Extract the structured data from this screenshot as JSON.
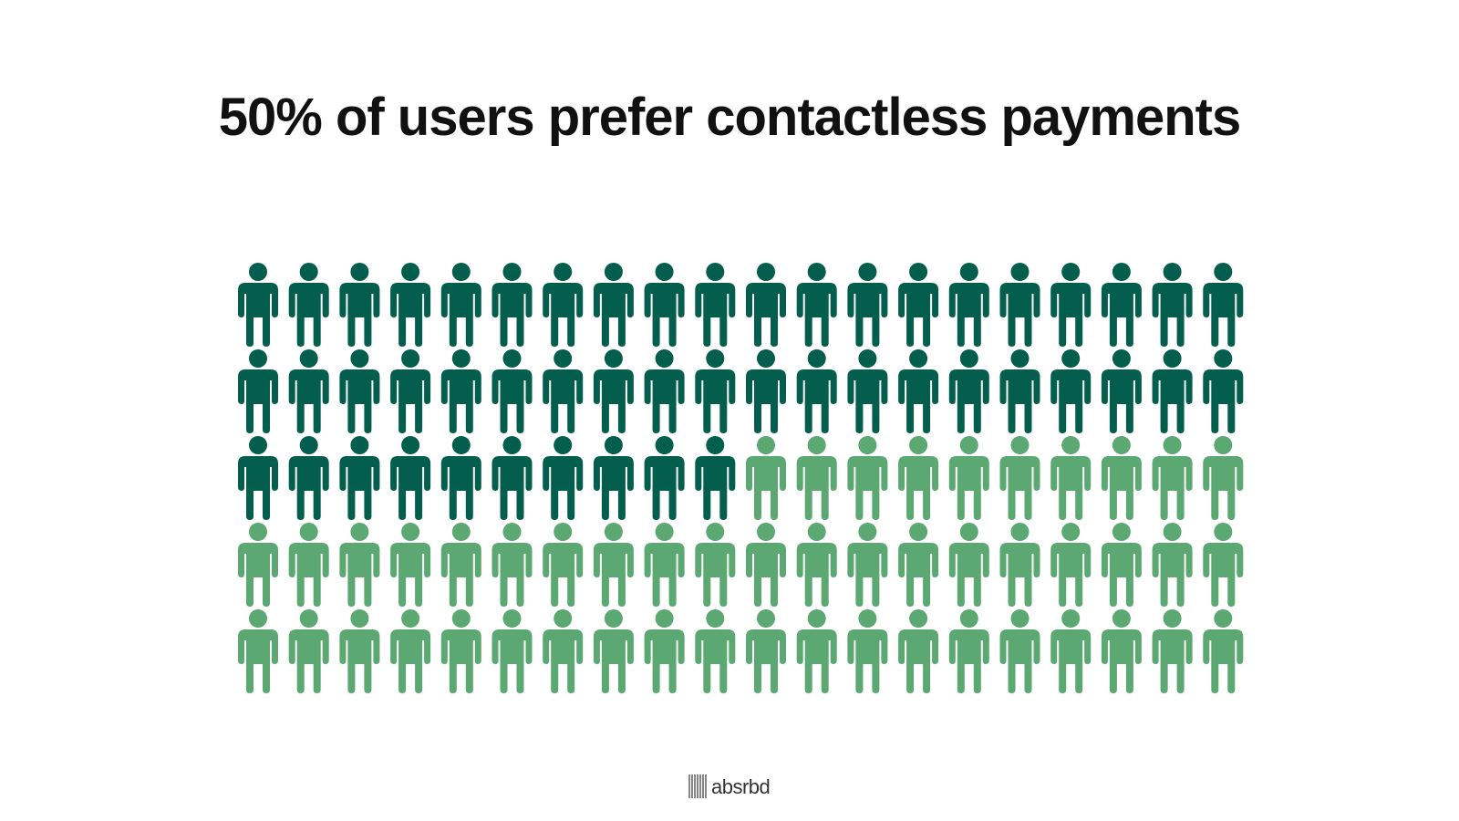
{
  "chart_data": {
    "type": "pictogram",
    "title": "50% of users prefer contactless payments",
    "values": [
      50,
      50
    ],
    "colors": [
      "#045e4d",
      "#5ba872"
    ]
  },
  "footer": {
    "brand": "absrbd"
  }
}
